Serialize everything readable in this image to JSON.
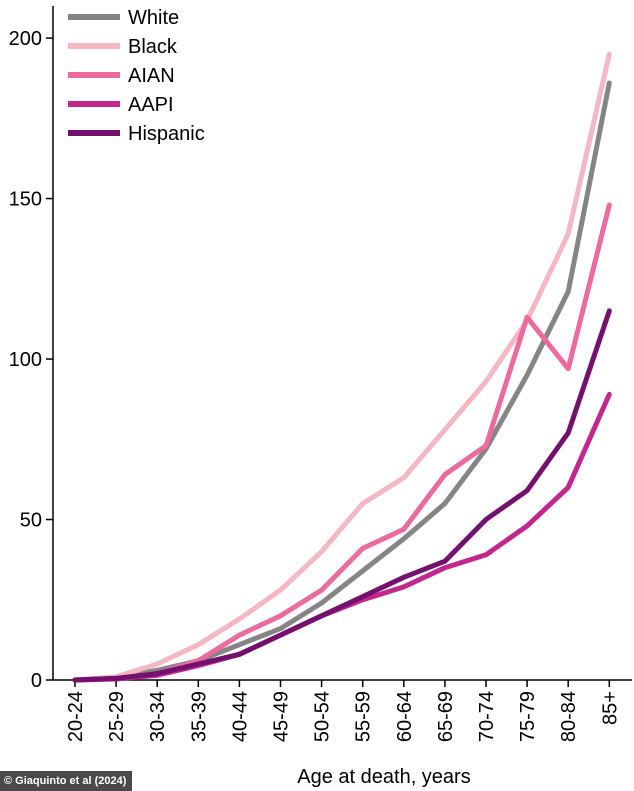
{
  "chart_data": {
    "type": "line",
    "categories": [
      "20-24",
      "25-29",
      "30-34",
      "35-39",
      "40-44",
      "45-49",
      "50-54",
      "55-59",
      "60-64",
      "65-69",
      "70-74",
      "75-79",
      "80-84",
      "85+"
    ],
    "series": [
      {
        "name": "White",
        "color": "#858585",
        "values": [
          0,
          0.8,
          3,
          6,
          11,
          16,
          24,
          34,
          44,
          55,
          72,
          95,
          121,
          186
        ]
      },
      {
        "name": "Black",
        "color": "#f4b7c3",
        "values": [
          0,
          1,
          5,
          11,
          19,
          28,
          40,
          55,
          63,
          78,
          93,
          112,
          139,
          195
        ]
      },
      {
        "name": "AIAN",
        "color": "#ec6a9d",
        "values": [
          0,
          0.5,
          2,
          6,
          14,
          20,
          28,
          41,
          47,
          64,
          73,
          113,
          97,
          148
        ]
      },
      {
        "name": "AAPI",
        "color": "#c2278d",
        "values": [
          0,
          0.3,
          1.5,
          4.5,
          8,
          14,
          20,
          25,
          29,
          35,
          39,
          48,
          60,
          89
        ]
      },
      {
        "name": "Hispanic",
        "color": "#74106e",
        "values": [
          0,
          0.5,
          2,
          5,
          8,
          14,
          20,
          26,
          32,
          37,
          50,
          59,
          77,
          115
        ]
      }
    ],
    "xlabel": "Age at death, years",
    "ylim": [
      0,
      210
    ],
    "yticks": [
      "0",
      "50",
      "100",
      "150",
      "200"
    ],
    "ytick_values": [
      0,
      50,
      100,
      150,
      200
    ],
    "grid": false,
    "legend_position": "top-left"
  },
  "credit": "© Giaquinto et al (2024)"
}
